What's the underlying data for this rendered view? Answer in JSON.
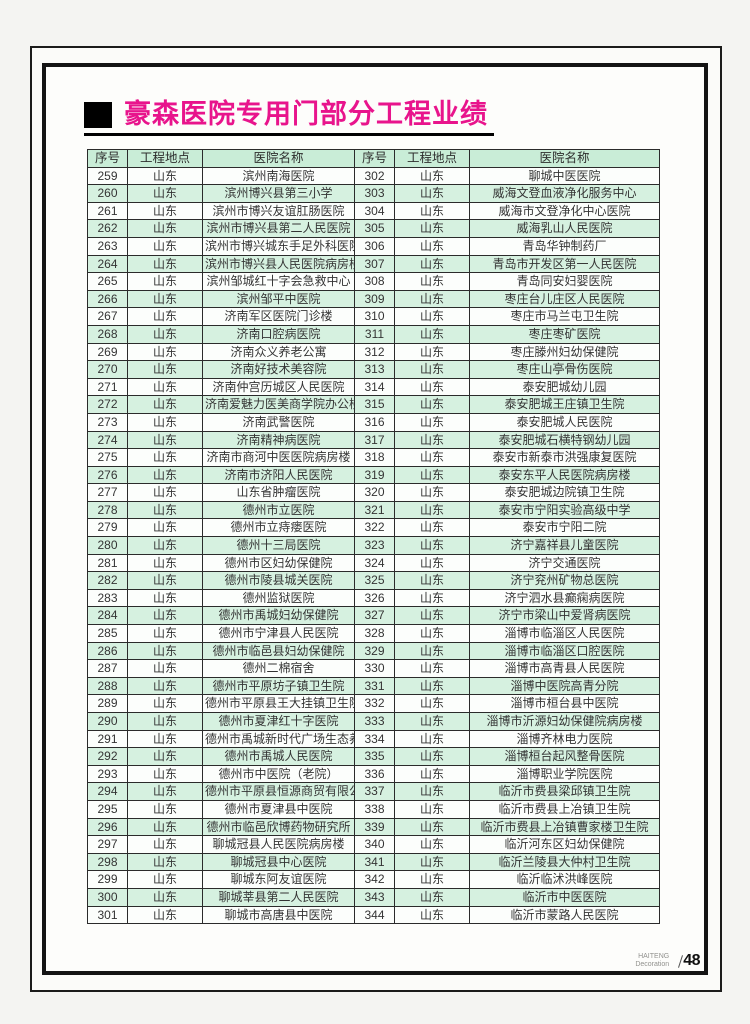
{
  "page": {
    "title": "豪森医院专用门部分工程业绩",
    "footer_brand_line1": "HAITENG",
    "footer_brand_line2": "Decoration",
    "page_number": "48"
  },
  "colors": {
    "title_accent": "#e8148c",
    "header_green": "#c9edd7",
    "row_green": "#d6f1e0",
    "frame_black": "#141414"
  },
  "table": {
    "headers": [
      "序号",
      "工程地点",
      "医院名称",
      "序号",
      "工程地点",
      "医院名称"
    ],
    "left_rows": [
      [
        "259",
        "山东",
        "滨州南海医院"
      ],
      [
        "260",
        "山东",
        "滨州博兴县第三小学"
      ],
      [
        "261",
        "山东",
        "滨州市博兴友谊肛肠医院"
      ],
      [
        "262",
        "山东",
        "滨州市博兴县第二人民医院"
      ],
      [
        "263",
        "山东",
        "滨州市博兴城东手足外科医院"
      ],
      [
        "264",
        "山东",
        "滨州市博兴县人民医院病房楼"
      ],
      [
        "265",
        "山东",
        "滨州邹城红十字会急救中心"
      ],
      [
        "266",
        "山东",
        "滨州邹平中医院"
      ],
      [
        "267",
        "山东",
        "济南军区医院门诊楼"
      ],
      [
        "268",
        "山东",
        "济南口腔病医院"
      ],
      [
        "269",
        "山东",
        "济南众义养老公寓"
      ],
      [
        "270",
        "山东",
        "济南好技术美容院"
      ],
      [
        "271",
        "山东",
        "济南仲宫历城区人民医院"
      ],
      [
        "272",
        "山东",
        "济南爱魅力医美商学院办公楼"
      ],
      [
        "273",
        "山东",
        "济南武警医院"
      ],
      [
        "274",
        "山东",
        "济南精神病医院"
      ],
      [
        "275",
        "山东",
        "济南市商河中医医院病房楼"
      ],
      [
        "276",
        "山东",
        "济南市济阳人民医院"
      ],
      [
        "277",
        "山东",
        "山东省肿瘤医院"
      ],
      [
        "278",
        "山东",
        "德州市立医院"
      ],
      [
        "279",
        "山东",
        "德州市立痔瘘医院"
      ],
      [
        "280",
        "山东",
        "德州十三局医院"
      ],
      [
        "281",
        "山东",
        "德州市区妇幼保健院"
      ],
      [
        "282",
        "山东",
        "德州市陵县城关医院"
      ],
      [
        "283",
        "山东",
        "德州监狱医院"
      ],
      [
        "284",
        "山东",
        "德州市禹城妇幼保健院"
      ],
      [
        "285",
        "山东",
        "德州市宁津县人民医院"
      ],
      [
        "286",
        "山东",
        "德州市临邑县妇幼保健院"
      ],
      [
        "287",
        "山东",
        "德州二棉宿舍"
      ],
      [
        "288",
        "山东",
        "德州市平原坊子镇卫生院"
      ],
      [
        "289",
        "山东",
        "德州市平原县王大挂镇卫生院"
      ],
      [
        "290",
        "山东",
        "德州市夏津红十字医院"
      ],
      [
        "291",
        "山东",
        "德州市禹城新时代广场生态养生馆"
      ],
      [
        "292",
        "山东",
        "德州市禹城人民医院"
      ],
      [
        "293",
        "山东",
        "德州市中医院（老院）"
      ],
      [
        "294",
        "山东",
        "德州市平原县恒源商贸有限公司"
      ],
      [
        "295",
        "山东",
        "德州市夏津县中医院"
      ],
      [
        "296",
        "山东",
        "德州市临邑欣博药物研究所"
      ],
      [
        "297",
        "山东",
        "聊城冠县人民医院病房楼"
      ],
      [
        "298",
        "山东",
        "聊城冠县中心医院"
      ],
      [
        "299",
        "山东",
        "聊城东阿友谊医院"
      ],
      [
        "300",
        "山东",
        "聊城莘县第二人民医院"
      ],
      [
        "301",
        "山东",
        "聊城市高唐县中医院"
      ]
    ],
    "right_rows": [
      [
        "302",
        "山东",
        "聊城中医医院"
      ],
      [
        "303",
        "山东",
        "威海文登血液净化服务中心"
      ],
      [
        "304",
        "山东",
        "威海市文登净化中心医院"
      ],
      [
        "305",
        "山东",
        "威海乳山人民医院"
      ],
      [
        "306",
        "山东",
        "青岛华钟制药厂"
      ],
      [
        "307",
        "山东",
        "青岛市开发区第一人民医院"
      ],
      [
        "308",
        "山东",
        "青岛同安妇婴医院"
      ],
      [
        "309",
        "山东",
        "枣庄台儿庄区人民医院"
      ],
      [
        "310",
        "山东",
        "枣庄市马兰屯卫生院"
      ],
      [
        "311",
        "山东",
        "枣庄枣矿医院"
      ],
      [
        "312",
        "山东",
        "枣庄滕州妇幼保健院"
      ],
      [
        "313",
        "山东",
        "枣庄山亭骨伤医院"
      ],
      [
        "314",
        "山东",
        "泰安肥城幼儿园"
      ],
      [
        "315",
        "山东",
        "泰安肥城王庄镇卫生院"
      ],
      [
        "316",
        "山东",
        "泰安肥城人民医院"
      ],
      [
        "317",
        "山东",
        "泰安肥城石横特钢幼儿园"
      ],
      [
        "318",
        "山东",
        "泰安市新泰市洪强康复医院"
      ],
      [
        "319",
        "山东",
        "泰安东平人民医院病房楼"
      ],
      [
        "320",
        "山东",
        "泰安肥城边院镇卫生院"
      ],
      [
        "321",
        "山东",
        "泰安市宁阳实验高级中学"
      ],
      [
        "322",
        "山东",
        "泰安市宁阳二院"
      ],
      [
        "323",
        "山东",
        "济宁嘉祥县儿童医院"
      ],
      [
        "324",
        "山东",
        "济宁交通医院"
      ],
      [
        "325",
        "山东",
        "济宁兖州矿物总医院"
      ],
      [
        "326",
        "山东",
        "济宁泗水县癫痫病医院"
      ],
      [
        "327",
        "山东",
        "济宁市梁山中爱肾病医院"
      ],
      [
        "328",
        "山东",
        "淄博市临淄区人民医院"
      ],
      [
        "329",
        "山东",
        "淄博市临淄区口腔医院"
      ],
      [
        "330",
        "山东",
        "淄博市高青县人民医院"
      ],
      [
        "331",
        "山东",
        "淄博中医院高青分院"
      ],
      [
        "332",
        "山东",
        "淄博市桓台县中医院"
      ],
      [
        "333",
        "山东",
        "淄博市沂源妇幼保健院病房楼"
      ],
      [
        "334",
        "山东",
        "淄博齐林电力医院"
      ],
      [
        "335",
        "山东",
        "淄博桓台起风整骨医院"
      ],
      [
        "336",
        "山东",
        "淄博职业学院医院"
      ],
      [
        "337",
        "山东",
        "临沂市费县梁邱镇卫生院"
      ],
      [
        "338",
        "山东",
        "临沂市费县上冶镇卫生院"
      ],
      [
        "339",
        "山东",
        "临沂市费县上冶镇曹家楼卫生院"
      ],
      [
        "340",
        "山东",
        "临沂河东区妇幼保健院"
      ],
      [
        "341",
        "山东",
        "临沂兰陵县大仲村卫生院"
      ],
      [
        "342",
        "山东",
        "临沂临沭洪峰医院"
      ],
      [
        "343",
        "山东",
        "临沂市中医医院"
      ],
      [
        "344",
        "山东",
        "临沂市蒙路人民医院"
      ]
    ]
  }
}
